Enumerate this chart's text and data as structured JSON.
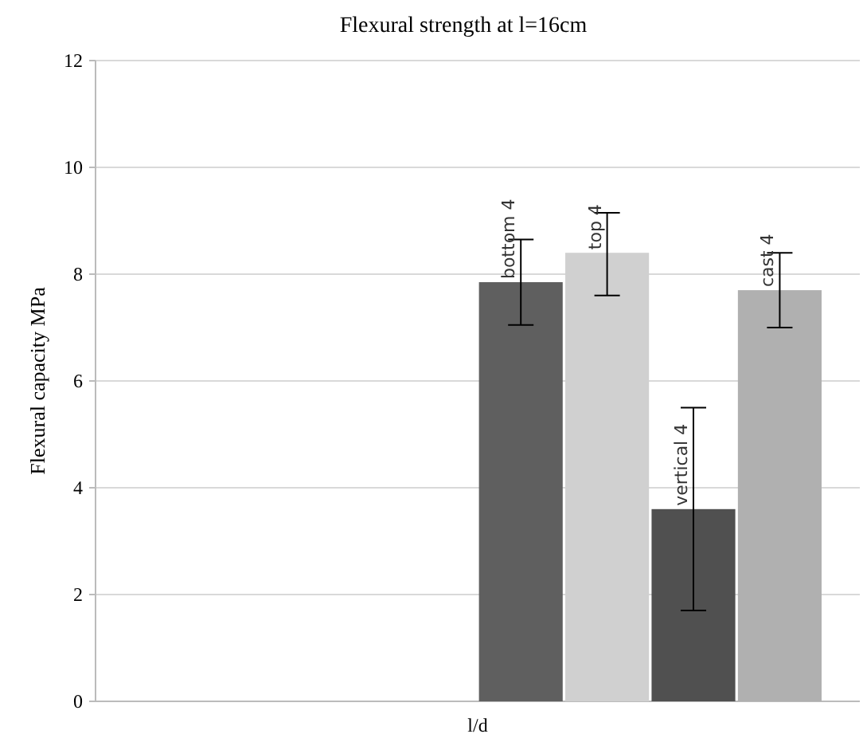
{
  "chart_data": {
    "type": "bar",
    "title": "Flexural strength at l=16cm",
    "xlabel": "l/d",
    "ylabel": "Flexural capacity MPa",
    "categories": [
      null
    ],
    "series": [
      {
        "values": [
          null
        ]
      },
      {
        "values": [
          null
        ]
      },
      {
        "values": [
          null
        ]
      },
      {
        "values": [
          null
        ]
      },
      {
        "name": "bottom 4",
        "color": "#5f5f5f",
        "values": [
          7.85
        ],
        "errors": [
          [
            7.05,
            8.65
          ]
        ]
      },
      {
        "name": "top 4",
        "color": "#d0d0d0",
        "values": [
          8.4
        ],
        "errors": [
          [
            7.6,
            9.15
          ]
        ]
      },
      {
        "name": "vertical 4",
        "color": "#505050",
        "values": [
          3.6
        ],
        "errors": [
          [
            1.7,
            5.5
          ]
        ]
      },
      {
        "name": "cast 4",
        "color": "#b0b0b0",
        "values": [
          7.7
        ],
        "errors": [
          [
            7.0,
            8.4
          ]
        ]
      }
    ],
    "ylim": [
      0,
      12
    ],
    "yticks": [
      0,
      2,
      4,
      6,
      8,
      10,
      12
    ],
    "grid": "y"
  }
}
